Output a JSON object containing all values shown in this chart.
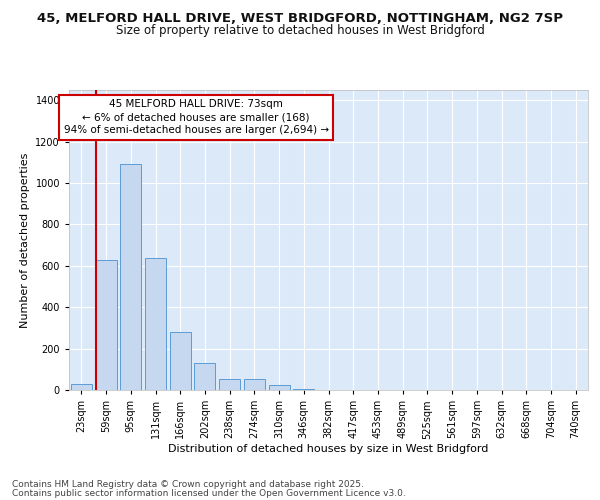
{
  "title_line1": "45, MELFORD HALL DRIVE, WEST BRIDGFORD, NOTTINGHAM, NG2 7SP",
  "title_line2": "Size of property relative to detached houses in West Bridgford",
  "xlabel": "Distribution of detached houses by size in West Bridgford",
  "ylabel": "Number of detached properties",
  "categories": [
    "23sqm",
    "59sqm",
    "95sqm",
    "131sqm",
    "166sqm",
    "202sqm",
    "238sqm",
    "274sqm",
    "310sqm",
    "346sqm",
    "382sqm",
    "417sqm",
    "453sqm",
    "489sqm",
    "525sqm",
    "561sqm",
    "597sqm",
    "632sqm",
    "668sqm",
    "704sqm",
    "740sqm"
  ],
  "values": [
    30,
    630,
    1090,
    640,
    280,
    130,
    55,
    55,
    25,
    5,
    2,
    0,
    0,
    0,
    0,
    0,
    0,
    0,
    0,
    0,
    0
  ],
  "bar_color": "#c5d8f0",
  "bar_edge_color": "#5b9bd5",
  "vline_color": "#cc0000",
  "vline_x_index": 1,
  "annotation_text": "45 MELFORD HALL DRIVE: 73sqm\n← 6% of detached houses are smaller (168)\n94% of semi-detached houses are larger (2,694) →",
  "annotation_box_color": "#ffffff",
  "annotation_box_edge": "#cc0000",
  "ylim": [
    0,
    1450
  ],
  "yticks": [
    0,
    200,
    400,
    600,
    800,
    1000,
    1200,
    1400
  ],
  "bg_color": "#dce9f8",
  "fig_bg_color": "#ffffff",
  "footer_line1": "Contains HM Land Registry data © Crown copyright and database right 2025.",
  "footer_line2": "Contains public sector information licensed under the Open Government Licence v3.0.",
  "title_fontsize": 9.5,
  "subtitle_fontsize": 8.5,
  "axis_label_fontsize": 8,
  "tick_fontsize": 7,
  "annotation_fontsize": 7.5,
  "footer_fontsize": 6.5
}
